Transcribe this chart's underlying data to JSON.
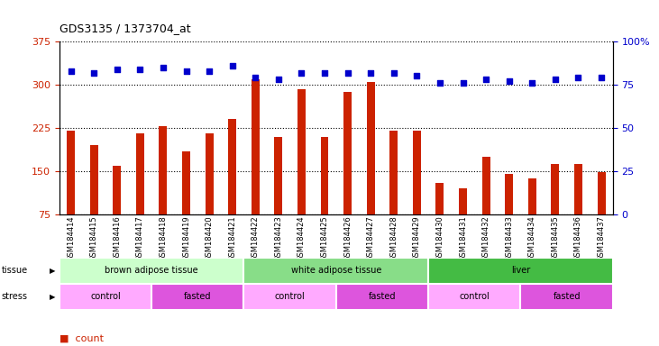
{
  "title": "GDS3135 / 1373704_at",
  "samples": [
    "GSM184414",
    "GSM184415",
    "GSM184416",
    "GSM184417",
    "GSM184418",
    "GSM184419",
    "GSM184420",
    "GSM184421",
    "GSM184422",
    "GSM184423",
    "GSM184424",
    "GSM184425",
    "GSM184426",
    "GSM184427",
    "GSM184428",
    "GSM184429",
    "GSM184430",
    "GSM184431",
    "GSM184432",
    "GSM184433",
    "GSM184434",
    "GSM184435",
    "GSM184436",
    "GSM184437"
  ],
  "counts": [
    220,
    195,
    160,
    215,
    228,
    185,
    215,
    240,
    310,
    210,
    292,
    210,
    287,
    305,
    220,
    220,
    130,
    120,
    175,
    145,
    138,
    162,
    162,
    148
  ],
  "percentile_ranks": [
    83,
    82,
    84,
    84,
    85,
    83,
    83,
    86,
    79,
    78,
    82,
    82,
    82,
    82,
    82,
    80,
    76,
    76,
    78,
    77,
    76,
    78,
    79,
    79
  ],
  "ylim_left": [
    75,
    375
  ],
  "yticks_left": [
    75,
    150,
    225,
    300,
    375
  ],
  "ylim_right": [
    0,
    100
  ],
  "yticks_right": [
    0,
    25,
    50,
    75,
    100
  ],
  "bar_color": "#cc2200",
  "dot_color": "#0000cc",
  "background_color": "#ffffff",
  "plot_bg_color": "#ffffff",
  "tissue_groups": [
    {
      "label": "brown adipose tissue",
      "start": 0,
      "end": 7,
      "color": "#ccffcc"
    },
    {
      "label": "white adipose tissue",
      "start": 8,
      "end": 15,
      "color": "#88dd88"
    },
    {
      "label": "liver",
      "start": 16,
      "end": 23,
      "color": "#44bb44"
    }
  ],
  "stress_groups": [
    {
      "label": "control",
      "start": 0,
      "end": 3,
      "color": "#ffaaff"
    },
    {
      "label": "fasted",
      "start": 4,
      "end": 7,
      "color": "#dd55dd"
    },
    {
      "label": "control",
      "start": 8,
      "end": 11,
      "color": "#ffaaff"
    },
    {
      "label": "fasted",
      "start": 12,
      "end": 15,
      "color": "#dd55dd"
    },
    {
      "label": "control",
      "start": 16,
      "end": 19,
      "color": "#ffaaff"
    },
    {
      "label": "fasted",
      "start": 20,
      "end": 23,
      "color": "#dd55dd"
    }
  ]
}
